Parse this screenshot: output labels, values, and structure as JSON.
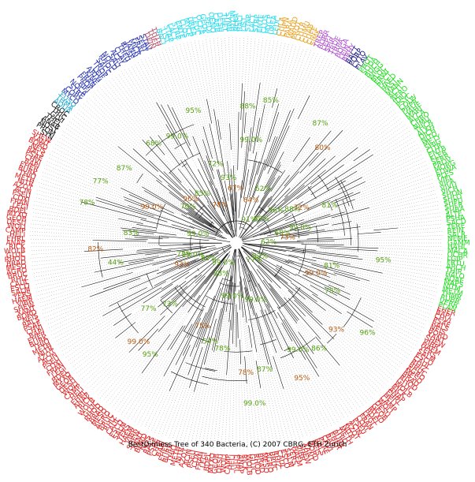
{
  "caption": "BestDimless Tree of 340 Bacteria, (C) 2007 CBRG, ETH Zurich",
  "tree": {
    "leaf_count": 340,
    "groups": [
      {
        "color": "#e02020",
        "leaves": 181,
        "labels": [
          "EHER",
          "BAPI",
          "CHVI",
          "PSAE",
          "RALS",
          "NEIS",
          "BORD",
          "XANT",
          "SHEW",
          "VIBR",
          "HAEM",
          "YERS",
          "SALM",
          "ESCO",
          "CAUL",
          "RHIZ",
          "BRUC",
          "AGRO",
          "MESO",
          "BRAD",
          "RHOD",
          "GLUC",
          "WOLB",
          "RICK",
          "ANAP",
          "EHRL",
          "HELI",
          "CAMP",
          "WOLI",
          "DESU",
          "GEOB",
          "MYXO",
          "BDEL",
          "LEGI",
          "FRAN",
          "COXI",
          "PSEU",
          "ACIN",
          "AZOT",
          "NITR",
          "METH",
          "THIO",
          "BURK"
        ]
      },
      {
        "color": "#111111",
        "leaves": 8,
        "labels": [
          "SYN",
          "PROM",
          "NOST",
          "ANAB",
          "THEL",
          "GLVI",
          "TRIC",
          "CROC"
        ]
      },
      {
        "color": "#22aacc",
        "leaves": 3,
        "labels": [
          "AQUA",
          "THMA",
          "FUSO"
        ]
      },
      {
        "color": "#2a36b0",
        "leaves": 24,
        "labels": [
          "MYCO",
          "CORY",
          "STRE",
          "NOCA",
          "BIFI",
          "PROP",
          "FRAN",
          "KINE",
          "ARTH",
          "LEIF",
          "TROP",
          "SACC",
          "RHOC",
          "NOCD",
          "SALI",
          "ACEL",
          "CLAV",
          "THFU",
          "ROSE",
          "JANN",
          "MICR",
          "FRAL",
          "SERY",
          "STAV"
        ]
      },
      {
        "color": "#b8506a",
        "leaves": 3,
        "labels": [
          "DEIN",
          "THER",
          "THTH"
        ]
      },
      {
        "color": "#22ddee",
        "leaves": 30,
        "labels": [
          "BACI",
          "LIST",
          "STAP",
          "LACT",
          "STRP",
          "ENTE",
          "CLOS",
          "MYCP",
          "UREA",
          "LEUC",
          "OCEA",
          "GEOK",
          "PEDI",
          "OENO",
          "CARB",
          "DESH",
          "THET",
          "SYMB",
          "MOTH",
          "ALKA"
        ]
      },
      {
        "color": "#e8a020",
        "leaves": 10,
        "labels": [
          "CHLA",
          "CHPN",
          "PARA",
          "WADD",
          "PROT",
          "CHTR",
          "CHMU",
          "CHAB",
          "CHFE",
          "SIMK"
        ]
      },
      {
        "color": "#b050d0",
        "leaves": 9,
        "labels": [
          "TREP",
          "BORR",
          "LEPT",
          "SPIR",
          "TRDE",
          "TRPA",
          "BOGA",
          "LEIN",
          "BRHY"
        ]
      },
      {
        "color": "#1a1a80",
        "leaves": 4,
        "labels": [
          "BACT",
          "PORP",
          "CYTO",
          "FLAV"
        ]
      },
      {
        "color": "#22dd22",
        "leaves": 68,
        "labels": [
          "PHOT",
          "SODA",
          "BUCH",
          "WIGG",
          "BLOC",
          "ERWI",
          "PECT",
          "HAED",
          "PAST",
          "MANN",
          "ACTI",
          "AERO",
          "IDIO",
          "PSYC",
          "COLW",
          "PHPR",
          "HAHE",
          "MARI",
          "ALCA",
          "CHRO",
          "NIMU",
          "THCR",
          "ALKH",
          "DICH",
          "NITO",
          "METY",
          "SHIG",
          "CITR",
          "ENTB",
          "KLEB",
          "SERR",
          "PROV",
          "MORG",
          "EDWA",
          "PLES",
          "VIFI",
          "VIPA",
          "VIVU",
          "VICH",
          "SHON",
          "SHLO",
          "SHPU",
          "SHFR",
          "SHBA",
          "ALTE",
          "PSHA",
          "SACD",
          "TERE",
          "REIN",
          "SALR",
          "NEME",
          "GAMM",
          "HAHL",
          "MACA",
          "OCHR",
          "LGIP",
          "FRTU",
          "ARCH",
          "THIR",
          "HALO",
          "AQAE",
          "MAPS",
          "NITM",
          "METM",
          "THMR",
          "RUBR",
          "VERR",
          "PLAN"
        ]
      }
    ],
    "support_values": [
      "99.0%",
      "78%",
      "82%",
      "96%",
      "93%",
      "77%",
      "86%",
      "99.0%",
      "95%",
      "99.0%",
      "87%",
      "99.0%",
      "78%",
      "99.0%",
      "78%",
      "54%",
      "75%",
      "88%",
      "99.0%",
      "95%",
      "99.0%",
      "73%",
      "77%",
      "82%",
      "93%",
      "99.0%",
      "77%",
      "44%",
      "82%",
      "83%",
      "99.0%",
      "78%",
      "99.0%",
      "77%",
      "87%",
      "70%",
      "96%",
      "68%",
      "85%",
      "99.0%",
      "78%",
      "95%",
      "72%",
      "93%",
      "67%",
      "88%",
      "99.0%",
      "85%",
      "64%",
      "62%",
      "91%",
      "87%",
      "80%",
      "89%",
      "96%",
      "88%",
      "72%",
      "81%",
      "99.0%",
      "68%",
      "73%",
      "62%",
      "95%",
      "81%"
    ]
  }
}
